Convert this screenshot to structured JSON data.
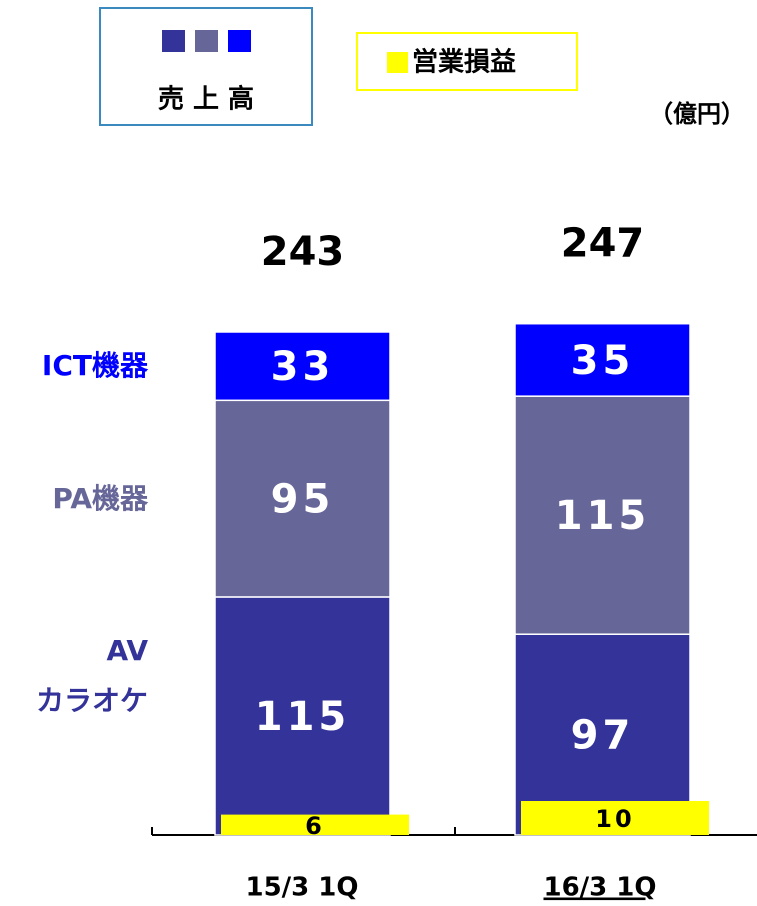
{
  "chart_data": {
    "type": "stacked_bar",
    "categories": [
      "15/3 1Q",
      "16/3 1Q"
    ],
    "series": [
      {
        "name": "AV\nカラオケ",
        "color": "#333399",
        "values": [
          115,
          97
        ]
      },
      {
        "name": "PA機器",
        "color": "#666699",
        "values": [
          95,
          115
        ]
      },
      {
        "name": "ICT機器",
        "color": "#0000ff",
        "values": [
          33,
          35
        ]
      }
    ],
    "totals": [
      243,
      247
    ],
    "sales_legend": "売 上 高",
    "profit": {
      "name": "営業損益",
      "color": "#ffff00",
      "values": [
        6,
        10
      ]
    },
    "unit": "（億円）"
  }
}
